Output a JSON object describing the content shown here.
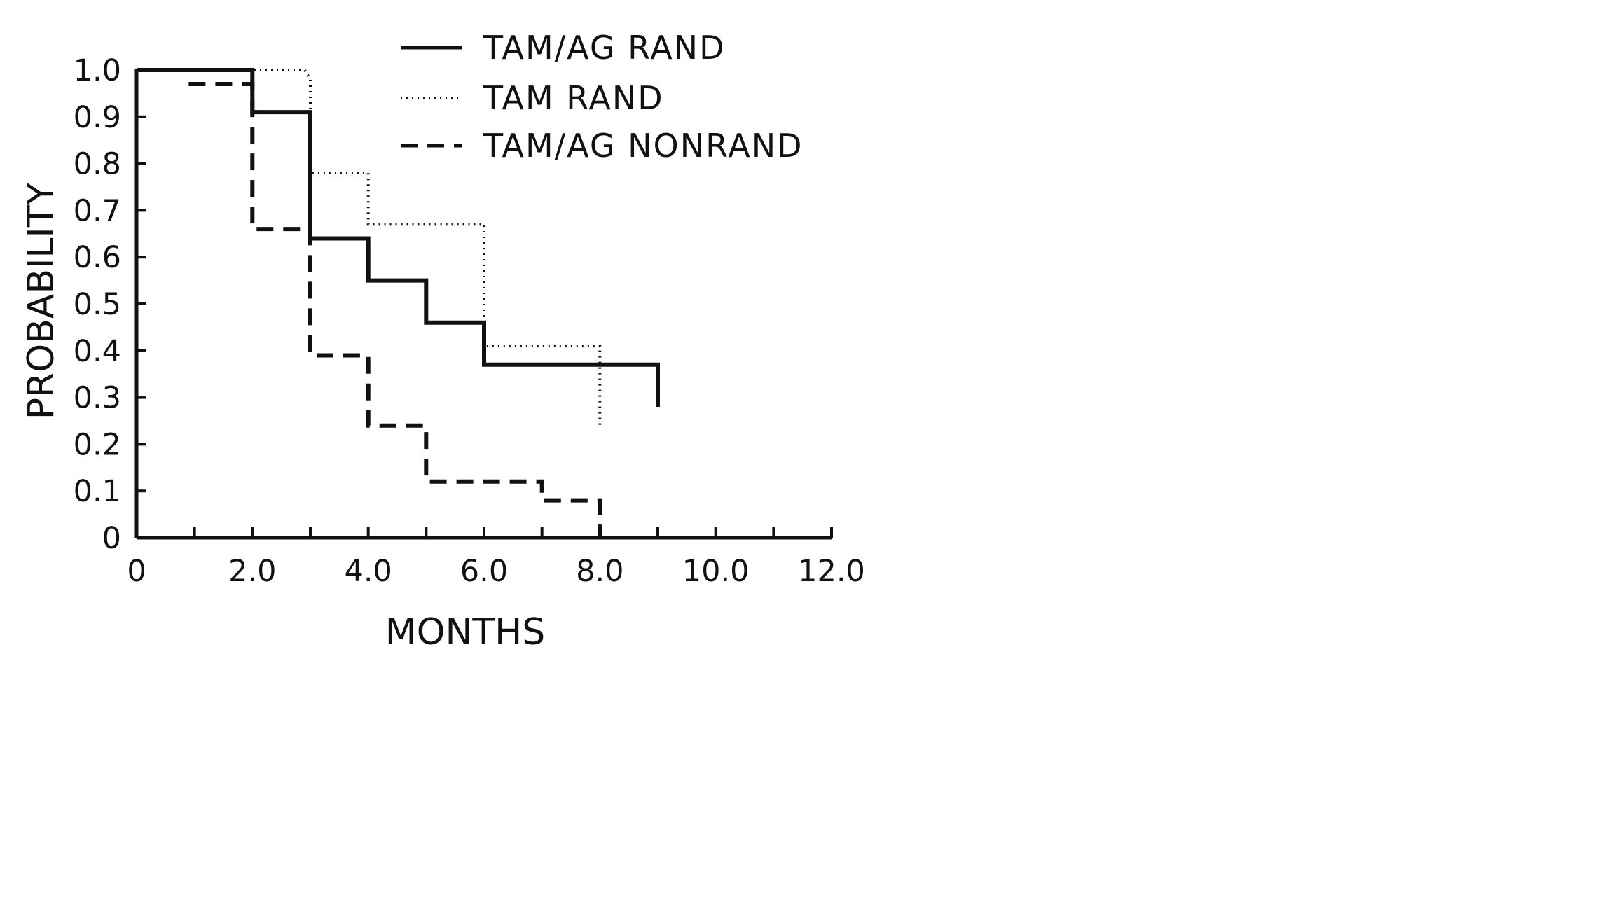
{
  "chart_data": {
    "type": "line",
    "subtype": "step",
    "xlabel": "MONTHS",
    "ylabel": "PROBABILITY",
    "xlim": [
      0,
      12
    ],
    "ylim": [
      0,
      1
    ],
    "x_ticks": [
      0,
      1,
      2,
      3,
      4,
      5,
      6,
      7,
      8,
      9,
      10,
      11,
      12
    ],
    "x_tick_labels": [
      {
        "value": 0,
        "label": "0"
      },
      {
        "value": 2,
        "label": "2.0"
      },
      {
        "value": 4,
        "label": "4.0"
      },
      {
        "value": 6,
        "label": "6.0"
      },
      {
        "value": 8,
        "label": "8.0"
      },
      {
        "value": 10,
        "label": "10.0"
      },
      {
        "value": 12,
        "label": "12.0"
      }
    ],
    "y_tick_labels": [
      {
        "value": 0,
        "label": "0"
      },
      {
        "value": 0.1,
        "label": "0.1"
      },
      {
        "value": 0.2,
        "label": "0.2"
      },
      {
        "value": 0.3,
        "label": "0.3"
      },
      {
        "value": 0.4,
        "label": "0.4"
      },
      {
        "value": 0.5,
        "label": "0.5"
      },
      {
        "value": 0.6,
        "label": "0.6"
      },
      {
        "value": 0.7,
        "label": "0.7"
      },
      {
        "value": 0.8,
        "label": "0.8"
      },
      {
        "value": 0.9,
        "label": "0.9"
      },
      {
        "value": 1.0,
        "label": "1.0"
      }
    ],
    "grid": false,
    "legend_position": "top",
    "series": [
      {
        "name": "TAM/AG RAND",
        "style": "solid",
        "color": "#111111",
        "points": [
          [
            0,
            1.0
          ],
          [
            2.0,
            1.0
          ],
          [
            2.0,
            0.91
          ],
          [
            3.0,
            0.91
          ],
          [
            3.0,
            0.64
          ],
          [
            4.0,
            0.64
          ],
          [
            4.0,
            0.55
          ],
          [
            5.0,
            0.55
          ],
          [
            5.0,
            0.46
          ],
          [
            6.0,
            0.46
          ],
          [
            6.0,
            0.37
          ],
          [
            9.0,
            0.37
          ],
          [
            9.0,
            0.28
          ]
        ]
      },
      {
        "name": "TAM RAND",
        "style": "dotted",
        "color": "#111111",
        "points": [
          [
            0,
            1.0
          ],
          [
            2.9,
            1.0
          ],
          [
            3.0,
            0.98
          ],
          [
            3.0,
            0.78
          ],
          [
            4.0,
            0.78
          ],
          [
            4.0,
            0.67
          ],
          [
            6.0,
            0.67
          ],
          [
            6.0,
            0.41
          ],
          [
            8.0,
            0.41
          ],
          [
            8.0,
            0.24
          ]
        ]
      },
      {
        "name": "TAM/AG NONRAND",
        "style": "dashed",
        "color": "#111111",
        "points": [
          [
            0.9,
            0.97
          ],
          [
            1.8,
            0.97
          ],
          [
            2.0,
            0.97
          ],
          [
            2.0,
            0.66
          ],
          [
            3.0,
            0.66
          ],
          [
            3.0,
            0.39
          ],
          [
            4.0,
            0.39
          ],
          [
            4.0,
            0.24
          ],
          [
            5.0,
            0.24
          ],
          [
            5.0,
            0.12
          ],
          [
            7.0,
            0.12
          ],
          [
            7.0,
            0.08
          ],
          [
            8.0,
            0.08
          ],
          [
            8.0,
            0.0
          ]
        ]
      }
    ]
  }
}
